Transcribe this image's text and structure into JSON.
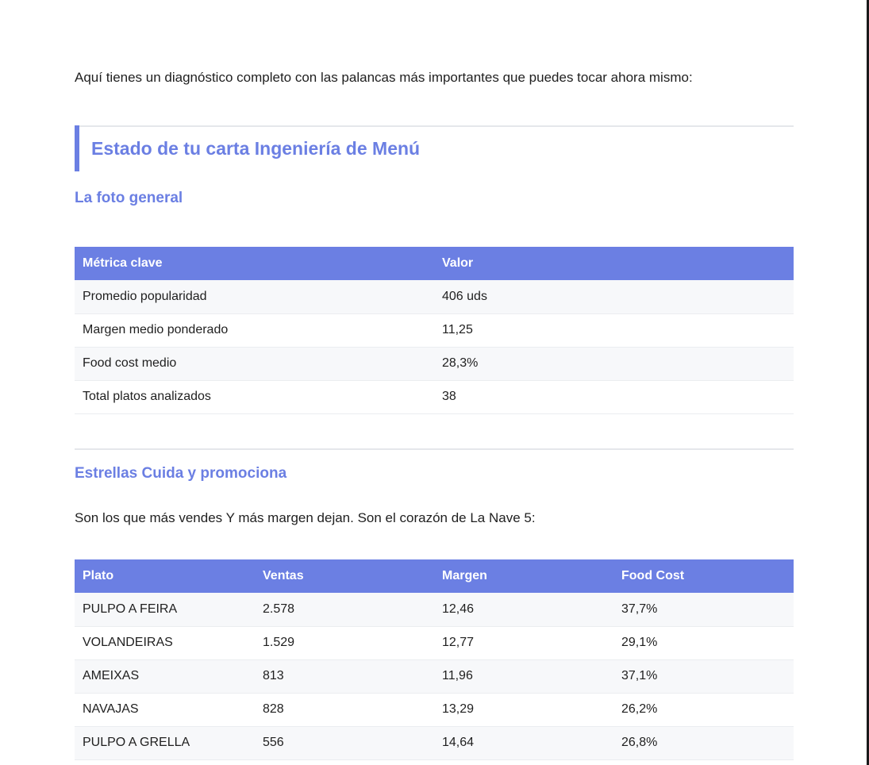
{
  "intro": "Aquí tienes un diagnóstico completo con las palancas más importantes que puedes tocar ahora mismo:",
  "section_title": "Estado de tu carta Ingeniería de Menú",
  "overview": {
    "heading": "La foto general",
    "columns": [
      "Métrica clave",
      "Valor"
    ],
    "rows": [
      [
        "Promedio popularidad",
        "406 uds"
      ],
      [
        "Margen medio ponderado",
        "11,25"
      ],
      [
        "Food cost medio",
        "28,3%"
      ],
      [
        "Total platos analizados",
        "38"
      ]
    ]
  },
  "stars": {
    "heading": "Estrellas Cuida y promociona",
    "description": "Son los que más vendes Y más margen dejan. Son el corazón de La Nave 5:",
    "columns": [
      "Plato",
      "Ventas",
      "Margen",
      "Food Cost"
    ],
    "rows": [
      [
        "PULPO A FEIRA",
        "2.578",
        "12,46",
        "37,7%"
      ],
      [
        "VOLANDEIRAS",
        "1.529",
        "12,77",
        "29,1%"
      ],
      [
        "AMEIXAS",
        "813",
        "11,96",
        "37,1%"
      ],
      [
        "NAVAJAS",
        "828",
        "13,29",
        "26,2%"
      ],
      [
        "PULPO A GRELLA",
        "556",
        "14,64",
        "26,8%"
      ]
    ]
  },
  "colors": {
    "accent": "#6b7fe3",
    "row_alt": "#f7f8fa",
    "divider": "#e5e7eb"
  }
}
